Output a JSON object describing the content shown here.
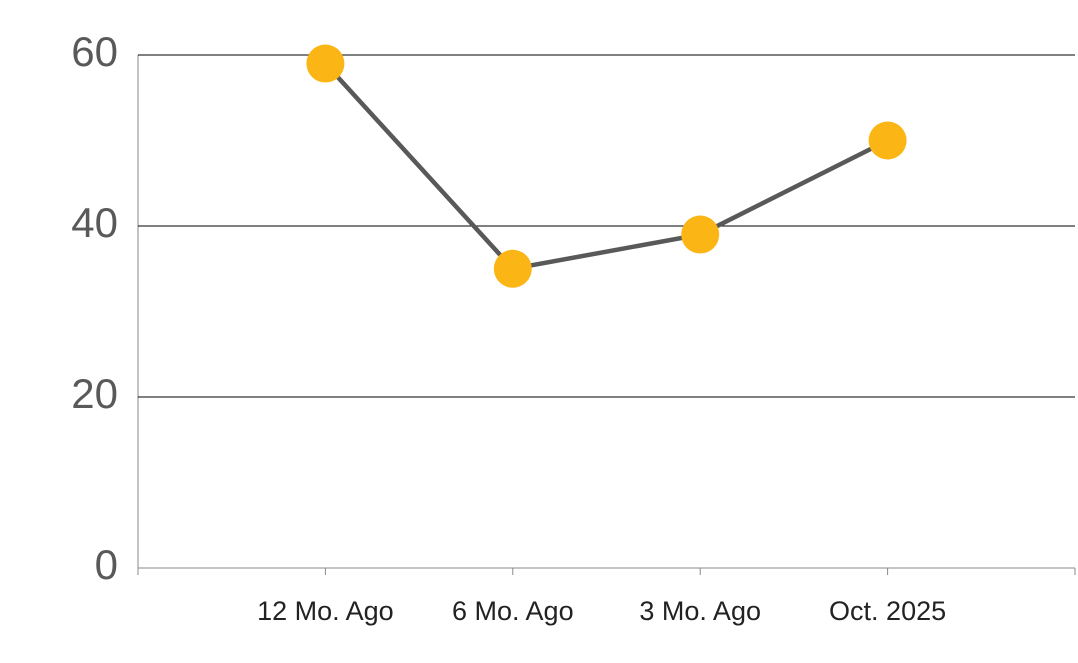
{
  "chart_data": {
    "type": "line",
    "categories": [
      "12 Mo. Ago",
      "6 Mo. Ago",
      "3 Mo. Ago",
      "Oct. 2025"
    ],
    "series": [
      {
        "color": "#fbb615",
        "line_color": "#595959",
        "values": [
          59,
          35,
          39,
          50
        ]
      }
    ],
    "ylim": [
      0,
      60
    ],
    "yticks": [
      0,
      20,
      40,
      60
    ],
    "grid": true
  }
}
